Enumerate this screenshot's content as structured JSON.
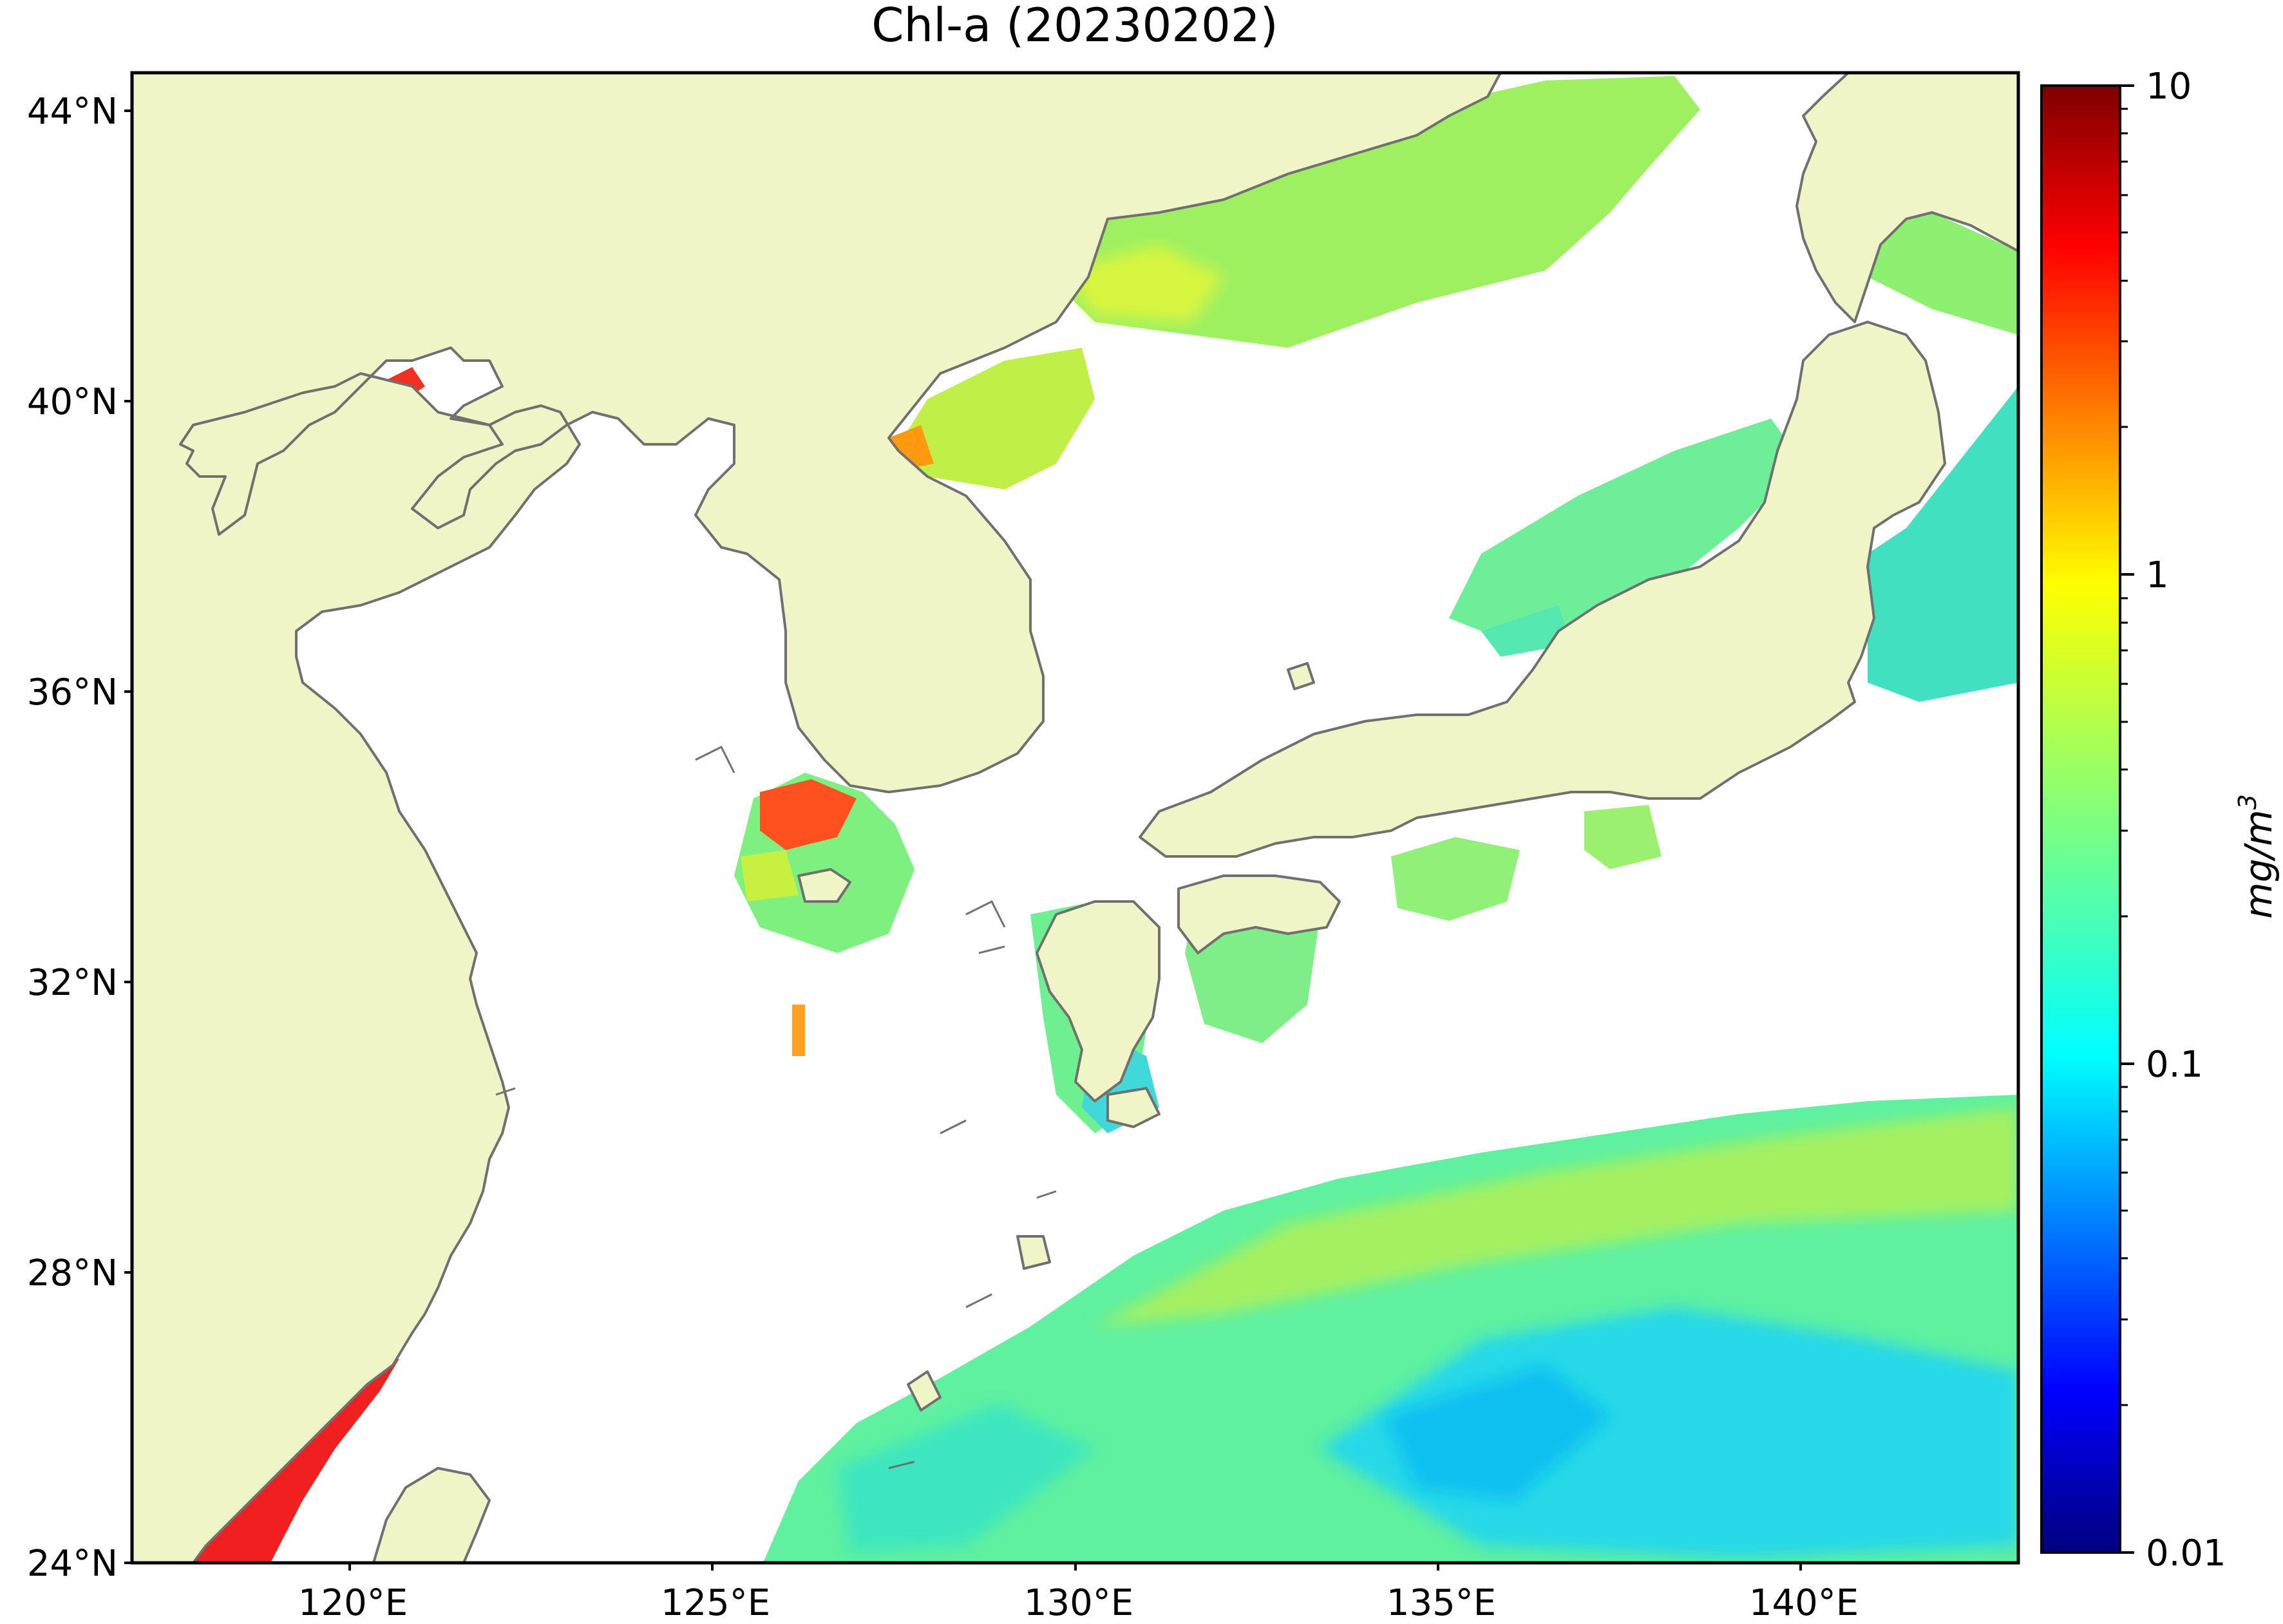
{
  "title": "Chl-a (20230202)",
  "map": {
    "lat_labels": [
      "44°N",
      "40°N",
      "36°N",
      "32°N",
      "28°N",
      "24°N"
    ],
    "lon_labels": [
      "120°E",
      "125°E",
      "130°E",
      "135°E",
      "140°E"
    ],
    "lat_values": [
      44,
      40,
      36,
      32,
      28,
      24
    ],
    "lon_values": [
      120,
      125,
      130,
      135,
      140
    ],
    "lon_range": [
      117,
      143
    ],
    "lat_range": [
      24,
      44.5
    ],
    "colors": {
      "land": "#f0f5c8",
      "coast": "#707070",
      "no_data": "#ffffff",
      "frame": "#000000"
    }
  },
  "colorbar": {
    "label": "mg/m",
    "label_exponent": "3",
    "tick_labels": [
      "10",
      "1",
      "0.1",
      "0.01"
    ],
    "tick_values": [
      10,
      1,
      0.1,
      0.01
    ],
    "scale": "log",
    "range": [
      0.01,
      10
    ],
    "colormap": [
      "#00007f",
      "#0000ff",
      "#007fff",
      "#00ffff",
      "#7fff7f",
      "#ffff00",
      "#ff7f00",
      "#ff0000",
      "#7f0000"
    ]
  }
}
